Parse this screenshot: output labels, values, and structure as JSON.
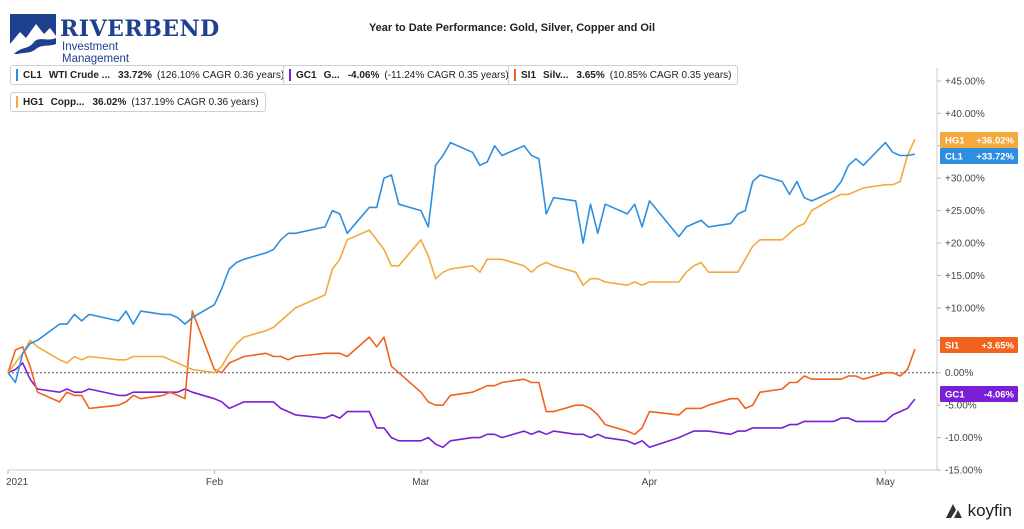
{
  "brand": {
    "name": "RIVERBEND",
    "subtitle": "Investment Management",
    "color": "#1f3f8f"
  },
  "footer": {
    "brand": "koyfin"
  },
  "legend": [
    {
      "ticker": "CL1",
      "name": "WTI Crude ...",
      "pct": "33.72%",
      "cagr": "(126.10% CAGR 0.36 years)",
      "color": "#2e8fe0"
    },
    {
      "ticker": "GC1",
      "name": "G...",
      "pct": "-4.06%",
      "cagr": "(-11.24% CAGR 0.35 years)",
      "color": "#7a1fd6"
    },
    {
      "ticker": "SI1",
      "name": "Silv...",
      "pct": "3.65%",
      "cagr": "(10.85% CAGR 0.35 years)",
      "color": "#f0621e"
    },
    {
      "ticker": "HG1",
      "name": "Copp...",
      "pct": "36.02%",
      "cagr": "(137.19% CAGR 0.36 years)",
      "color": "#f3a93b"
    }
  ],
  "chart_data": {
    "type": "line",
    "title": "Year to Date Performance: Gold, Silver, Copper and Oil",
    "x_tick_labels": [
      "2021",
      "Feb",
      "Mar",
      "Apr",
      "May"
    ],
    "x_tick_dates": [
      "2021-01-04",
      "2021-02-01",
      "2021-03-01",
      "2021-04-01",
      "2021-05-03"
    ],
    "x_range": [
      "2021-01-04",
      "2021-05-10"
    ],
    "y_tick_labels": [
      "+45.00%",
      "+40.00%",
      "+35.00%",
      "+30.00%",
      "+25.00%",
      "+20.00%",
      "+15.00%",
      "+10.00%",
      "+5.00%",
      "0.00%",
      "-5.00%",
      "-10.00%",
      "-15.00%"
    ],
    "ylim": [
      -15,
      47
    ],
    "y_unit": "%",
    "zero_line": true,
    "grid": false,
    "legend_position": "top-left",
    "end_labels": [
      {
        "ticker": "HG1",
        "text": "+36.02%",
        "color": "#f3a93b"
      },
      {
        "ticker": "CL1",
        "text": "+33.72%",
        "color": "#2e8fe0"
      },
      {
        "ticker": "SI1",
        "text": "+3.65%",
        "color": "#f0621e"
      },
      {
        "ticker": "GC1",
        "text": "-4.06%",
        "color": "#7a1fd6"
      }
    ],
    "x": [
      "2021-01-04",
      "2021-01-05",
      "2021-01-06",
      "2021-01-07",
      "2021-01-08",
      "2021-01-11",
      "2021-01-12",
      "2021-01-13",
      "2021-01-14",
      "2021-01-15",
      "2021-01-19",
      "2021-01-20",
      "2021-01-21",
      "2021-01-22",
      "2021-01-25",
      "2021-01-26",
      "2021-01-27",
      "2021-01-28",
      "2021-01-29",
      "2021-02-01",
      "2021-02-02",
      "2021-02-03",
      "2021-02-04",
      "2021-02-05",
      "2021-02-08",
      "2021-02-09",
      "2021-02-10",
      "2021-02-11",
      "2021-02-12",
      "2021-02-16",
      "2021-02-17",
      "2021-02-18",
      "2021-02-19",
      "2021-02-22",
      "2021-02-23",
      "2021-02-24",
      "2021-02-25",
      "2021-02-26",
      "2021-03-01",
      "2021-03-02",
      "2021-03-03",
      "2021-03-04",
      "2021-03-05",
      "2021-03-08",
      "2021-03-09",
      "2021-03-10",
      "2021-03-11",
      "2021-03-12",
      "2021-03-15",
      "2021-03-16",
      "2021-03-17",
      "2021-03-18",
      "2021-03-19",
      "2021-03-22",
      "2021-03-23",
      "2021-03-24",
      "2021-03-25",
      "2021-03-26",
      "2021-03-29",
      "2021-03-30",
      "2021-03-31",
      "2021-04-01",
      "2021-04-05",
      "2021-04-06",
      "2021-04-07",
      "2021-04-08",
      "2021-04-09",
      "2021-04-12",
      "2021-04-13",
      "2021-04-14",
      "2021-04-15",
      "2021-04-16",
      "2021-04-19",
      "2021-04-20",
      "2021-04-21",
      "2021-04-22",
      "2021-04-23",
      "2021-04-26",
      "2021-04-27",
      "2021-04-28",
      "2021-04-29",
      "2021-04-30",
      "2021-05-03",
      "2021-05-04",
      "2021-05-05",
      "2021-05-06",
      "2021-05-07"
    ],
    "series": [
      {
        "name": "CL1",
        "color": "#2e8fe0",
        "values": [
          0.0,
          -1.5,
          3.0,
          4.5,
          5.0,
          7.5,
          7.5,
          9.0,
          8.0,
          9.0,
          8.0,
          9.5,
          7.5,
          9.5,
          9.0,
          9.0,
          8.5,
          7.5,
          8.5,
          10.5,
          13.0,
          16.0,
          17.0,
          17.5,
          18.5,
          19.0,
          20.5,
          21.5,
          21.5,
          22.5,
          25.0,
          24.5,
          21.5,
          25.5,
          25.5,
          30.0,
          30.5,
          26.0,
          25.0,
          22.5,
          32.0,
          33.5,
          35.5,
          34.0,
          32.0,
          32.5,
          35.0,
          33.5,
          35.0,
          33.5,
          33.0,
          24.5,
          27.0,
          26.5,
          20.0,
          26.0,
          21.5,
          26.0,
          24.5,
          26.0,
          22.5,
          26.5,
          21.0,
          22.5,
          23.0,
          23.5,
          22.5,
          23.0,
          24.5,
          25.0,
          29.5,
          30.5,
          29.5,
          27.5,
          29.5,
          27.0,
          26.5,
          28.0,
          29.5,
          32.0,
          33.0,
          32.0,
          35.5,
          34.0,
          33.5,
          33.5,
          33.72
        ]
      },
      {
        "name": "GC1",
        "color": "#7a1fd6",
        "values": [
          0.0,
          0.5,
          1.5,
          -1.0,
          -2.5,
          -3.0,
          -2.5,
          -3.0,
          -3.0,
          -2.5,
          -3.5,
          -3.5,
          -3.0,
          -3.0,
          -3.0,
          -3.0,
          -3.0,
          -2.5,
          -3.0,
          -4.0,
          -4.5,
          -5.5,
          -5.0,
          -4.5,
          -4.5,
          -4.5,
          -5.5,
          -6.0,
          -6.5,
          -7.0,
          -6.5,
          -7.0,
          -6.0,
          -6.0,
          -8.5,
          -8.5,
          -10.0,
          -10.5,
          -10.5,
          -10.0,
          -11.0,
          -11.5,
          -10.5,
          -10.0,
          -10.0,
          -9.5,
          -9.5,
          -10.0,
          -9.0,
          -9.5,
          -9.0,
          -9.5,
          -9.0,
          -9.5,
          -9.5,
          -10.0,
          -9.5,
          -10.0,
          -10.5,
          -11.0,
          -10.5,
          -11.5,
          -10.0,
          -9.5,
          -9.0,
          -9.0,
          -9.0,
          -9.5,
          -9.0,
          -9.0,
          -8.5,
          -8.5,
          -8.5,
          -8.0,
          -8.0,
          -7.5,
          -7.5,
          -7.5,
          -7.0,
          -7.0,
          -7.5,
          -7.5,
          -7.5,
          -6.5,
          -6.0,
          -5.5,
          -4.06
        ]
      },
      {
        "name": "SI1",
        "color": "#f0621e",
        "values": [
          0.0,
          3.5,
          4.0,
          1.0,
          -3.0,
          -4.5,
          -3.0,
          -3.5,
          -3.5,
          -5.5,
          -5.0,
          -4.5,
          -3.5,
          -4.0,
          -3.5,
          -3.0,
          -3.5,
          -4.0,
          9.5,
          0.5,
          0.0,
          1.5,
          2.0,
          2.5,
          3.0,
          2.5,
          2.5,
          2.0,
          2.5,
          3.0,
          3.0,
          3.0,
          2.5,
          5.5,
          4.0,
          5.5,
          1.0,
          0.0,
          -3.0,
          -4.5,
          -5.0,
          -5.0,
          -3.5,
          -3.0,
          -2.5,
          -2.0,
          -2.0,
          -1.5,
          -1.0,
          -1.5,
          -1.5,
          -6.0,
          -6.0,
          -5.0,
          -5.0,
          -5.5,
          -6.5,
          -8.0,
          -9.0,
          -9.5,
          -8.5,
          -6.0,
          -6.5,
          -5.5,
          -5.5,
          -5.5,
          -5.0,
          -4.0,
          -4.0,
          -5.5,
          -5.0,
          -3.0,
          -2.5,
          -1.5,
          -1.5,
          -0.5,
          -1.0,
          -1.0,
          -1.0,
          -0.5,
          -0.5,
          -1.0,
          0.0,
          0.0,
          -0.5,
          0.5,
          3.65
        ]
      },
      {
        "name": "HG1",
        "color": "#f3a93b",
        "values": [
          0.0,
          1.5,
          3.0,
          5.0,
          4.0,
          2.0,
          1.5,
          2.5,
          2.0,
          2.5,
          2.0,
          2.0,
          2.5,
          2.5,
          2.5,
          2.0,
          1.5,
          1.0,
          0.5,
          0.0,
          1.0,
          3.0,
          4.5,
          5.5,
          6.5,
          7.0,
          8.0,
          9.0,
          10.0,
          12.0,
          16.0,
          17.5,
          20.5,
          22.0,
          20.5,
          19.0,
          16.5,
          16.5,
          20.5,
          18.0,
          14.5,
          15.5,
          16.0,
          16.5,
          15.5,
          17.5,
          17.5,
          17.5,
          16.5,
          15.5,
          16.5,
          17.0,
          16.5,
          15.5,
          13.5,
          14.5,
          14.5,
          14.0,
          13.5,
          14.0,
          13.5,
          14.0,
          14.0,
          15.5,
          16.5,
          17.0,
          15.5,
          15.5,
          15.5,
          17.5,
          19.5,
          20.5,
          20.5,
          21.5,
          22.5,
          23.0,
          25.0,
          27.0,
          27.5,
          27.5,
          28.0,
          28.5,
          29.0,
          29.0,
          29.5,
          33.5,
          36.02
        ]
      }
    ]
  }
}
